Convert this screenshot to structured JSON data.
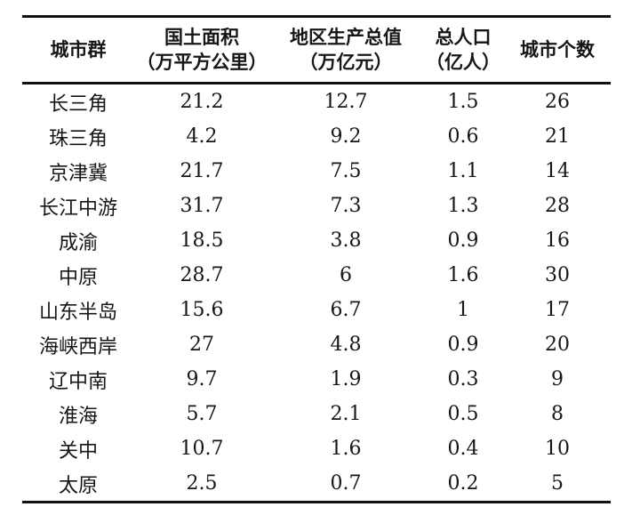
{
  "page": {
    "background": "#ffffff",
    "rule_color": "#111111",
    "text_color": "#161616"
  },
  "table": {
    "headers": [
      {
        "title": "城市群",
        "unit": ""
      },
      {
        "title": "国土面积",
        "unit": "（万平方公里）"
      },
      {
        "title": "地区生产总值",
        "unit": "（万亿元）"
      },
      {
        "title": "总人口",
        "unit": "（亿人）"
      },
      {
        "title": "城市个数",
        "unit": ""
      }
    ],
    "rows": [
      {
        "cluster": "长三角",
        "land_area": "21.2",
        "gdp": "12.7",
        "population": "1.5",
        "city_count": "26"
      },
      {
        "cluster": "珠三角",
        "land_area": "4.2",
        "gdp": "9.2",
        "population": "0.6",
        "city_count": "21"
      },
      {
        "cluster": "京津冀",
        "land_area": "21.7",
        "gdp": "7.5",
        "population": "1.1",
        "city_count": "14"
      },
      {
        "cluster": "长江中游",
        "land_area": "31.7",
        "gdp": "7.3",
        "population": "1.3",
        "city_count": "28"
      },
      {
        "cluster": "成渝",
        "land_area": "18.5",
        "gdp": "3.8",
        "population": "0.9",
        "city_count": "16"
      },
      {
        "cluster": "中原",
        "land_area": "28.7",
        "gdp": "6",
        "population": "1.6",
        "city_count": "30"
      },
      {
        "cluster": "山东半岛",
        "land_area": "15.6",
        "gdp": "6.7",
        "population": "1",
        "city_count": "17"
      },
      {
        "cluster": "海峡西岸",
        "land_area": "27",
        "gdp": "4.8",
        "population": "0.9",
        "city_count": "20"
      },
      {
        "cluster": "辽中南",
        "land_area": "9.7",
        "gdp": "1.9",
        "population": "0.3",
        "city_count": "9"
      },
      {
        "cluster": "淮海",
        "land_area": "5.7",
        "gdp": "2.1",
        "population": "0.5",
        "city_count": "8"
      },
      {
        "cluster": "关中",
        "land_area": "10.7",
        "gdp": "1.6",
        "population": "0.4",
        "city_count": "10"
      },
      {
        "cluster": "太原",
        "land_area": "2.5",
        "gdp": "0.7",
        "population": "0.2",
        "city_count": "5"
      }
    ]
  },
  "chart_data": {
    "type": "table",
    "columns": [
      "城市群",
      "国土面积（万平方公里）",
      "地区生产总值（万亿元）",
      "总人口（亿人）",
      "城市个数"
    ],
    "rows": [
      [
        "长三角",
        21.2,
        12.7,
        1.5,
        26
      ],
      [
        "珠三角",
        4.2,
        9.2,
        0.6,
        21
      ],
      [
        "京津冀",
        21.7,
        7.5,
        1.1,
        14
      ],
      [
        "长江中游",
        31.7,
        7.3,
        1.3,
        28
      ],
      [
        "成渝",
        18.5,
        3.8,
        0.9,
        16
      ],
      [
        "中原",
        28.7,
        6,
        1.6,
        30
      ],
      [
        "山东半岛",
        15.6,
        6.7,
        1,
        17
      ],
      [
        "海峡西岸",
        27,
        4.8,
        0.9,
        20
      ],
      [
        "辽中南",
        9.7,
        1.9,
        0.3,
        9
      ],
      [
        "淮海",
        5.7,
        2.1,
        0.5,
        8
      ],
      [
        "关中",
        10.7,
        1.6,
        0.4,
        10
      ],
      [
        "太原",
        2.5,
        0.7,
        0.2,
        5
      ]
    ],
    "title": "",
    "layout_hints": {
      "style": "three-line-table",
      "header_bold": true,
      "cell_align": "center"
    }
  }
}
